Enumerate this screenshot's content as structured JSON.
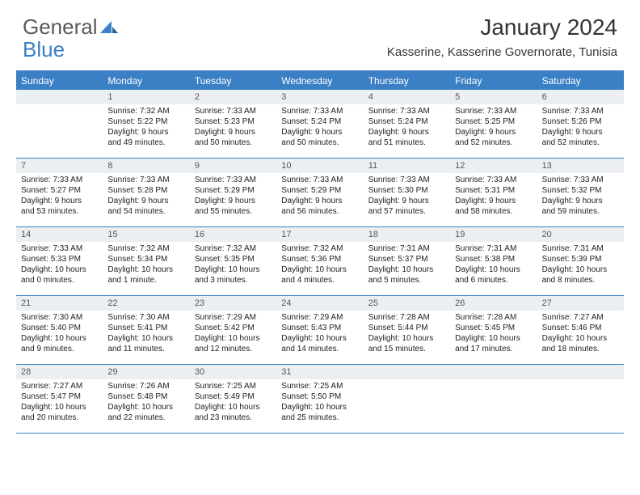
{
  "logo": {
    "text1": "General",
    "text2": "Blue"
  },
  "title": "January 2024",
  "location": "Kasserine, Kasserine Governorate, Tunisia",
  "colors": {
    "accent": "#3b7fc4",
    "header_bg": "#eceff1",
    "text": "#222222",
    "logo_gray": "#5a5a5a"
  },
  "day_names": [
    "Sunday",
    "Monday",
    "Tuesday",
    "Wednesday",
    "Thursday",
    "Friday",
    "Saturday"
  ],
  "weeks": [
    [
      null,
      {
        "n": "1",
        "sr": "Sunrise: 7:32 AM",
        "ss": "Sunset: 5:22 PM",
        "d1": "Daylight: 9 hours",
        "d2": "and 49 minutes."
      },
      {
        "n": "2",
        "sr": "Sunrise: 7:33 AM",
        "ss": "Sunset: 5:23 PM",
        "d1": "Daylight: 9 hours",
        "d2": "and 50 minutes."
      },
      {
        "n": "3",
        "sr": "Sunrise: 7:33 AM",
        "ss": "Sunset: 5:24 PM",
        "d1": "Daylight: 9 hours",
        "d2": "and 50 minutes."
      },
      {
        "n": "4",
        "sr": "Sunrise: 7:33 AM",
        "ss": "Sunset: 5:24 PM",
        "d1": "Daylight: 9 hours",
        "d2": "and 51 minutes."
      },
      {
        "n": "5",
        "sr": "Sunrise: 7:33 AM",
        "ss": "Sunset: 5:25 PM",
        "d1": "Daylight: 9 hours",
        "d2": "and 52 minutes."
      },
      {
        "n": "6",
        "sr": "Sunrise: 7:33 AM",
        "ss": "Sunset: 5:26 PM",
        "d1": "Daylight: 9 hours",
        "d2": "and 52 minutes."
      }
    ],
    [
      {
        "n": "7",
        "sr": "Sunrise: 7:33 AM",
        "ss": "Sunset: 5:27 PM",
        "d1": "Daylight: 9 hours",
        "d2": "and 53 minutes."
      },
      {
        "n": "8",
        "sr": "Sunrise: 7:33 AM",
        "ss": "Sunset: 5:28 PM",
        "d1": "Daylight: 9 hours",
        "d2": "and 54 minutes."
      },
      {
        "n": "9",
        "sr": "Sunrise: 7:33 AM",
        "ss": "Sunset: 5:29 PM",
        "d1": "Daylight: 9 hours",
        "d2": "and 55 minutes."
      },
      {
        "n": "10",
        "sr": "Sunrise: 7:33 AM",
        "ss": "Sunset: 5:29 PM",
        "d1": "Daylight: 9 hours",
        "d2": "and 56 minutes."
      },
      {
        "n": "11",
        "sr": "Sunrise: 7:33 AM",
        "ss": "Sunset: 5:30 PM",
        "d1": "Daylight: 9 hours",
        "d2": "and 57 minutes."
      },
      {
        "n": "12",
        "sr": "Sunrise: 7:33 AM",
        "ss": "Sunset: 5:31 PM",
        "d1": "Daylight: 9 hours",
        "d2": "and 58 minutes."
      },
      {
        "n": "13",
        "sr": "Sunrise: 7:33 AM",
        "ss": "Sunset: 5:32 PM",
        "d1": "Daylight: 9 hours",
        "d2": "and 59 minutes."
      }
    ],
    [
      {
        "n": "14",
        "sr": "Sunrise: 7:33 AM",
        "ss": "Sunset: 5:33 PM",
        "d1": "Daylight: 10 hours",
        "d2": "and 0 minutes."
      },
      {
        "n": "15",
        "sr": "Sunrise: 7:32 AM",
        "ss": "Sunset: 5:34 PM",
        "d1": "Daylight: 10 hours",
        "d2": "and 1 minute."
      },
      {
        "n": "16",
        "sr": "Sunrise: 7:32 AM",
        "ss": "Sunset: 5:35 PM",
        "d1": "Daylight: 10 hours",
        "d2": "and 3 minutes."
      },
      {
        "n": "17",
        "sr": "Sunrise: 7:32 AM",
        "ss": "Sunset: 5:36 PM",
        "d1": "Daylight: 10 hours",
        "d2": "and 4 minutes."
      },
      {
        "n": "18",
        "sr": "Sunrise: 7:31 AM",
        "ss": "Sunset: 5:37 PM",
        "d1": "Daylight: 10 hours",
        "d2": "and 5 minutes."
      },
      {
        "n": "19",
        "sr": "Sunrise: 7:31 AM",
        "ss": "Sunset: 5:38 PM",
        "d1": "Daylight: 10 hours",
        "d2": "and 6 minutes."
      },
      {
        "n": "20",
        "sr": "Sunrise: 7:31 AM",
        "ss": "Sunset: 5:39 PM",
        "d1": "Daylight: 10 hours",
        "d2": "and 8 minutes."
      }
    ],
    [
      {
        "n": "21",
        "sr": "Sunrise: 7:30 AM",
        "ss": "Sunset: 5:40 PM",
        "d1": "Daylight: 10 hours",
        "d2": "and 9 minutes."
      },
      {
        "n": "22",
        "sr": "Sunrise: 7:30 AM",
        "ss": "Sunset: 5:41 PM",
        "d1": "Daylight: 10 hours",
        "d2": "and 11 minutes."
      },
      {
        "n": "23",
        "sr": "Sunrise: 7:29 AM",
        "ss": "Sunset: 5:42 PM",
        "d1": "Daylight: 10 hours",
        "d2": "and 12 minutes."
      },
      {
        "n": "24",
        "sr": "Sunrise: 7:29 AM",
        "ss": "Sunset: 5:43 PM",
        "d1": "Daylight: 10 hours",
        "d2": "and 14 minutes."
      },
      {
        "n": "25",
        "sr": "Sunrise: 7:28 AM",
        "ss": "Sunset: 5:44 PM",
        "d1": "Daylight: 10 hours",
        "d2": "and 15 minutes."
      },
      {
        "n": "26",
        "sr": "Sunrise: 7:28 AM",
        "ss": "Sunset: 5:45 PM",
        "d1": "Daylight: 10 hours",
        "d2": "and 17 minutes."
      },
      {
        "n": "27",
        "sr": "Sunrise: 7:27 AM",
        "ss": "Sunset: 5:46 PM",
        "d1": "Daylight: 10 hours",
        "d2": "and 18 minutes."
      }
    ],
    [
      {
        "n": "28",
        "sr": "Sunrise: 7:27 AM",
        "ss": "Sunset: 5:47 PM",
        "d1": "Daylight: 10 hours",
        "d2": "and 20 minutes."
      },
      {
        "n": "29",
        "sr": "Sunrise: 7:26 AM",
        "ss": "Sunset: 5:48 PM",
        "d1": "Daylight: 10 hours",
        "d2": "and 22 minutes."
      },
      {
        "n": "30",
        "sr": "Sunrise: 7:25 AM",
        "ss": "Sunset: 5:49 PM",
        "d1": "Daylight: 10 hours",
        "d2": "and 23 minutes."
      },
      {
        "n": "31",
        "sr": "Sunrise: 7:25 AM",
        "ss": "Sunset: 5:50 PM",
        "d1": "Daylight: 10 hours",
        "d2": "and 25 minutes."
      },
      null,
      null,
      null
    ]
  ]
}
